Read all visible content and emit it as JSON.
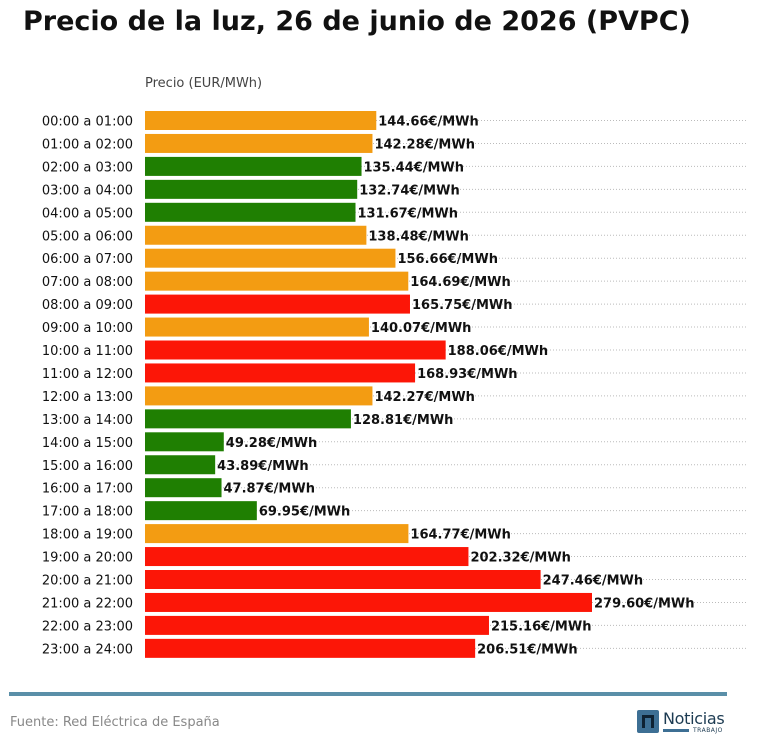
{
  "chart_data": {
    "type": "bar",
    "orientation": "horizontal",
    "title": "Precio de la luz, 26 de junio de 2026 (PVPC)",
    "xlabel": "Precio (EUR/MWh)",
    "value_suffix": "€/MWh",
    "xlim": [
      0,
      300
    ],
    "grid": true,
    "categories": [
      "00:00 a 01:00",
      "01:00 a 02:00",
      "02:00 a 03:00",
      "03:00 a 04:00",
      "04:00 a 05:00",
      "05:00 a 06:00",
      "06:00 a 07:00",
      "07:00 a 08:00",
      "08:00 a 09:00",
      "09:00 a 10:00",
      "10:00 a 11:00",
      "11:00 a 12:00",
      "12:00 a 13:00",
      "13:00 a 14:00",
      "14:00 a 15:00",
      "15:00 a 16:00",
      "16:00 a 17:00",
      "17:00 a 18:00",
      "18:00 a 19:00",
      "19:00 a 20:00",
      "20:00 a 21:00",
      "21:00 a 22:00",
      "22:00 a 23:00",
      "23:00 a 24:00"
    ],
    "values": [
      144.66,
      142.28,
      135.44,
      132.74,
      131.67,
      138.48,
      156.66,
      164.69,
      165.75,
      140.07,
      188.06,
      168.93,
      142.27,
      128.81,
      49.28,
      43.89,
      47.87,
      69.95,
      164.77,
      202.32,
      247.46,
      279.6,
      215.16,
      206.51
    ],
    "value_labels": [
      "144.66€/MWh",
      "142.28€/MWh",
      "135.44€/MWh",
      "132.74€/MWh",
      "131.67€/MWh",
      "138.48€/MWh",
      "156.66€/MWh",
      "164.69€/MWh",
      "165.75€/MWh",
      "140.07€/MWh",
      "188.06€/MWh",
      "168.93€/MWh",
      "142.27€/MWh",
      "128.81€/MWh",
      "49.28€/MWh",
      "43.89€/MWh",
      "47.87€/MWh",
      "69.95€/MWh",
      "164.77€/MWh",
      "202.32€/MWh",
      "247.46€/MWh",
      "279.60€/MWh",
      "215.16€/MWh",
      "206.51€/MWh"
    ],
    "levels": [
      "medio",
      "medio",
      "bajo",
      "bajo",
      "bajo",
      "medio",
      "medio",
      "medio",
      "alto",
      "medio",
      "alto",
      "alto",
      "medio",
      "bajo",
      "bajo",
      "bajo",
      "bajo",
      "bajo",
      "medio",
      "alto",
      "alto",
      "alto",
      "alto",
      "alto"
    ],
    "level_colors": {
      "bajo": "#1f7f02",
      "medio": "#f39c12",
      "alto": "#fc1607"
    }
  },
  "footer": {
    "source": "Fuente: Red Eléctrica de España",
    "logo_name": "Noticias",
    "logo_sub": "TRABAJO",
    "line_color": "#5a8fa8"
  }
}
